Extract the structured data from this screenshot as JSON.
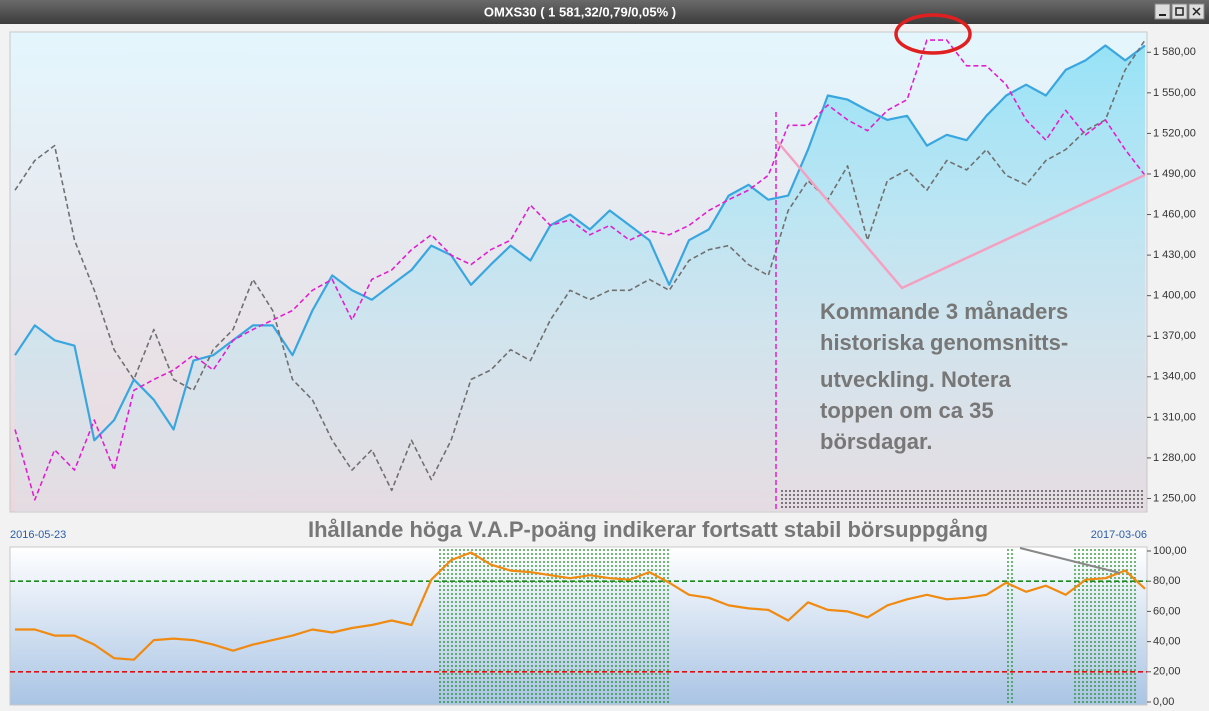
{
  "window": {
    "title": "OMXS30 ( 1 581,32/0,79/0,05% )"
  },
  "chart_data": [
    {
      "type": "line",
      "categories": [
        "2016-05-23",
        null,
        null,
        null,
        null,
        null,
        null,
        null,
        null,
        null,
        null,
        null,
        null,
        null,
        null,
        null,
        null,
        null,
        null,
        null,
        null,
        null,
        null,
        null,
        null,
        null,
        null,
        null,
        null,
        null,
        null,
        null,
        null,
        null,
        null,
        null,
        null,
        null,
        null,
        null,
        null,
        null,
        null,
        null,
        null,
        null,
        null,
        null,
        null,
        null,
        null,
        null,
        null,
        null,
        null,
        null,
        null,
        "2017-03-06"
      ],
      "series": [
        {
          "color": "#3aa6e0",
          "line_style": "solid",
          "area": true,
          "values": [
            1356,
            1378,
            1367,
            1363,
            1293,
            1308,
            1338,
            1323,
            1301,
            1352,
            1356,
            1367,
            1378,
            1378,
            1356,
            1389,
            1415,
            1404,
            1397,
            1408,
            1419,
            1437,
            1430,
            1408,
            1423,
            1437,
            1426,
            1452,
            1460,
            1449,
            1463,
            1452,
            1441,
            1408,
            1441,
            1449,
            1474,
            1482,
            1471,
            1474,
            1508,
            1548,
            1545,
            1537,
            1530,
            1533,
            1511,
            1519,
            1515,
            1533,
            1548,
            1556,
            1548,
            1567,
            1574,
            1585,
            1574,
            1585
          ]
        },
        {
          "color": "#707070",
          "line_style": "dashed",
          "area": false,
          "values": [
            1478,
            1500,
            1511,
            1441,
            1404,
            1360,
            1338,
            1375,
            1338,
            1330,
            1360,
            1375,
            1412,
            1389,
            1338,
            1323,
            1293,
            1271,
            1286,
            1256,
            1293,
            1264,
            1293,
            1338,
            1345,
            1360,
            1352,
            1382,
            1404,
            1397,
            1404,
            1404,
            1412,
            1404,
            1426,
            1434,
            1437,
            1423,
            1415,
            1463,
            1485,
            1471,
            1496,
            1441,
            1485,
            1493,
            1478,
            1500,
            1493,
            1508,
            1489,
            1482,
            1500,
            1508,
            1522,
            1530,
            1567,
            1589
          ]
        },
        {
          "color": "#e020d0",
          "line_style": "dashed",
          "area": false,
          "values": [
            1301,
            1249,
            1286,
            1271,
            1308,
            1271,
            1330,
            1338,
            1345,
            1356,
            1345,
            1367,
            1375,
            1382,
            1389,
            1404,
            1412,
            1382,
            1412,
            1419,
            1434,
            1445,
            1430,
            1423,
            1434,
            1441,
            1467,
            1452,
            1456,
            1445,
            1452,
            1441,
            1448,
            1445,
            1452,
            1463,
            1471,
            1478,
            1489,
            1526,
            1526,
            1541,
            1530,
            1522,
            1537,
            1545,
            1589,
            1589,
            1570,
            1570,
            1556,
            1530,
            1515,
            1537,
            1519,
            1530,
            1508,
            1489
          ]
        }
      ],
      "ylim": [
        1240,
        1595
      ],
      "yticks": [
        {
          "value": 1250,
          "label": "1 250,00"
        },
        {
          "value": 1280,
          "label": "1 280,00"
        },
        {
          "value": 1310,
          "label": "1 310,00"
        },
        {
          "value": 1340,
          "label": "1 340,00"
        },
        {
          "value": 1370,
          "label": "1 370,00"
        },
        {
          "value": 1400,
          "label": "1 400,00"
        },
        {
          "value": 1430,
          "label": "1 430,00"
        },
        {
          "value": 1460,
          "label": "1 460,00"
        },
        {
          "value": 1490,
          "label": "1 490,00"
        },
        {
          "value": 1520,
          "label": "1 520,00"
        },
        {
          "value": 1550,
          "label": "1 550,00"
        },
        {
          "value": 1580,
          "label": "1 580,00"
        }
      ],
      "annotation": [
        "Kommande 3 månaders",
        "historiska genomsnitts-",
        "utveckling. Notera",
        "toppen om ca 35",
        "börsdagar."
      ]
    },
    {
      "type": "line",
      "title": "Ihållande höga V.A.P-poäng indikerar fortsatt stabil börsuppgång",
      "series": [
        {
          "color": "#f08a10",
          "line_style": "solid",
          "area": false,
          "values": [
            48,
            48,
            44,
            44,
            38,
            29,
            28,
            41,
            42,
            41,
            38,
            34,
            38,
            41,
            44,
            48,
            46,
            49,
            51,
            54,
            51,
            81,
            94,
            99,
            91,
            87,
            86,
            84,
            82,
            84,
            82,
            81,
            86,
            79,
            71,
            69,
            64,
            62,
            61,
            54,
            66,
            61,
            60,
            56,
            64,
            68,
            71,
            68,
            69,
            71,
            79,
            73,
            77,
            71,
            81,
            82,
            87,
            75
          ]
        }
      ],
      "reference_lines": [
        {
          "value": 80,
          "color": "#1a8a1a"
        },
        {
          "value": 20,
          "color": "#e01010"
        }
      ],
      "ylim": [
        0,
        100
      ],
      "yticks": [
        {
          "value": 0,
          "label": "0,00"
        },
        {
          "value": 20,
          "label": "20,00"
        },
        {
          "value": 40,
          "label": "40,00"
        },
        {
          "value": 60,
          "label": "60,00"
        },
        {
          "value": 80,
          "label": "80,00"
        },
        {
          "value": 100,
          "label": "100,00"
        }
      ]
    }
  ]
}
